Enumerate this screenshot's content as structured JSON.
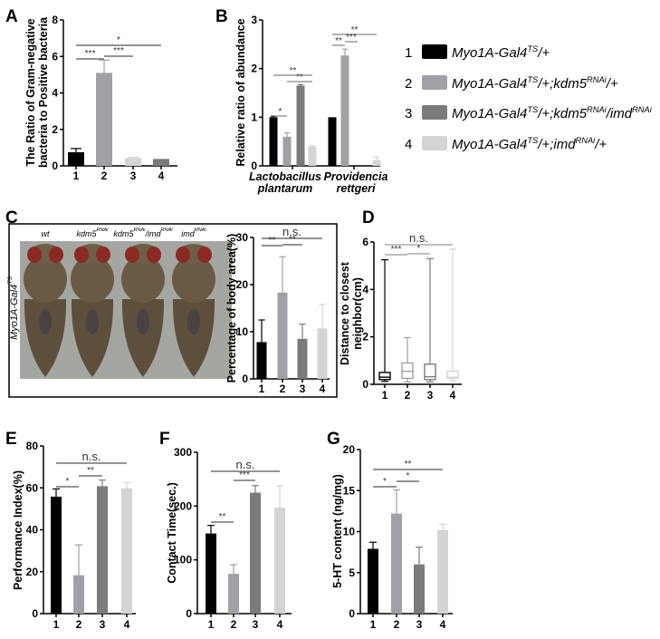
{
  "colors": {
    "g1": "#000000",
    "g2": "#a0a1a6",
    "g3": "#7b7b7d",
    "g4": "#d4d4d4"
  },
  "legend": [
    {
      "num": "1",
      "color": "#000000",
      "parts": [
        {
          "t": "Myo1A-Gal4"
        },
        {
          "sup": "TS"
        },
        {
          "t": "/+"
        }
      ]
    },
    {
      "num": "2",
      "color": "#a0a1a6",
      "parts": [
        {
          "t": "Myo1A-Gal4"
        },
        {
          "sup": "TS"
        },
        {
          "t": "/+;kdm5"
        },
        {
          "sup": "RNAi"
        },
        {
          "t": "/+"
        }
      ]
    },
    {
      "num": "3",
      "color": "#7b7b7d",
      "parts": [
        {
          "t": "Myo1A-Gal4"
        },
        {
          "sup": "TS"
        },
        {
          "t": "/+;kdm5"
        },
        {
          "sup": "RNAi"
        },
        {
          "t": "/imd"
        },
        {
          "sup": "RNAi"
        }
      ]
    },
    {
      "num": "4",
      "color": "#d4d4d4",
      "parts": [
        {
          "t": "Myo1A-Gal4"
        },
        {
          "sup": "TS"
        },
        {
          "t": "/+;imd"
        },
        {
          "sup": "RNAi"
        },
        {
          "t": "/+"
        }
      ]
    }
  ],
  "photo": {
    "side_label": {
      "t": "Myo1A-Gal4",
      "sup": "TS"
    },
    "genotypes": [
      [
        {
          "t": "wt"
        }
      ],
      [
        {
          "t": "kdm5"
        },
        {
          "sup": "RNAi"
        }
      ],
      [
        {
          "t": "kdm5"
        },
        {
          "sup": "RNAi"
        },
        {
          "t": "/imd"
        },
        {
          "sup": "RNAi"
        }
      ],
      [
        {
          "t": "imd"
        },
        {
          "sup": "RNAi"
        }
      ]
    ]
  },
  "chart_data": [
    {
      "panel": "A",
      "type": "bar",
      "ylabel": [
        "The Ratio of Gram-negative",
        "bacteria to Positive bacteria"
      ],
      "categories": [
        "1",
        "2",
        "3",
        "4"
      ],
      "values": [
        0.75,
        5.1,
        0.42,
        0.38
      ],
      "errors": [
        0.2,
        0.7,
        0.05,
        0
      ],
      "colors": [
        "#000000",
        "#a0a1a6",
        "#d4d4d4",
        "#7b7b7d"
      ],
      "ylim": [
        0,
        8
      ],
      "yticks": [
        "0",
        "2",
        "4",
        "6",
        "8"
      ],
      "significance": [
        {
          "from": 1,
          "to": 4,
          "label": "*"
        },
        {
          "from": 1,
          "to": 2,
          "label": "***"
        },
        {
          "from": 2,
          "to": 3,
          "label": "***"
        }
      ]
    },
    {
      "panel": "B",
      "type": "grouped-bar",
      "ylabel": [
        "Relative ratio of abundance"
      ],
      "categories": [
        [
          "Lactobacillus",
          "plantarum"
        ],
        [
          "Providencia",
          "rettgeri"
        ]
      ],
      "series": [
        {
          "name": "1",
          "values": [
            1.0,
            1.0
          ],
          "errors": [
            0.02,
            0
          ]
        },
        {
          "name": "2",
          "values": [
            0.6,
            2.27
          ],
          "errors": [
            0.08,
            0.13
          ]
        },
        {
          "name": "3",
          "values": [
            1.65,
            0
          ],
          "errors": [
            0.02,
            0
          ]
        },
        {
          "name": "4",
          "values": [
            0.4,
            0.12
          ],
          "errors": [
            0.02,
            0.06
          ]
        }
      ],
      "colors": [
        "#000000",
        "#a0a1a6",
        "#7b7b7d",
        "#d4d4d4"
      ],
      "ylim": [
        0,
        3
      ],
      "yticks": [
        "0",
        "1",
        "2",
        "3"
      ],
      "significance": [
        {
          "group": 1,
          "from": 1,
          "to": 2,
          "label": "*"
        },
        {
          "group": 1,
          "from": 2,
          "to": 4,
          "label": "**"
        },
        {
          "group": 1,
          "from": 1,
          "to": 4,
          "label": "**"
        },
        {
          "group": 2,
          "from": 1,
          "to": 2,
          "label": "**"
        },
        {
          "group": 2,
          "from": 2,
          "to": 3,
          "label": "***"
        },
        {
          "group": 2,
          "from": 1,
          "to": 4,
          "label": "**"
        }
      ]
    },
    {
      "panel": "C",
      "type": "bar",
      "ylabel": [
        "Percentage of body area(%)"
      ],
      "categories": [
        "1",
        "2",
        "3",
        "4"
      ],
      "values": [
        7.8,
        18.3,
        8.5,
        10.7
      ],
      "errors": [
        4.7,
        7.6,
        3.1,
        5.1
      ],
      "colors": [
        "#000000",
        "#a0a1a6",
        "#7b7b7d",
        "#d4d4d4"
      ],
      "ylim": [
        0,
        30
      ],
      "yticks": [
        "0",
        "10",
        "20",
        "30"
      ],
      "significance": [
        {
          "from": 1,
          "to": 4,
          "label": "n.s."
        },
        {
          "from": 1,
          "to": 2,
          "label": "**"
        },
        {
          "from": 2,
          "to": 3,
          "label": "**"
        }
      ]
    },
    {
      "panel": "D",
      "type": "box",
      "ylabel": [
        "Distance to closest",
        "neighbor(cm)"
      ],
      "categories": [
        "1",
        "2",
        "3",
        "4"
      ],
      "boxes": [
        {
          "min": 0.12,
          "q1": 0.2,
          "median": 0.3,
          "q3": 0.5,
          "max": 5.25
        },
        {
          "min": 0.1,
          "q1": 0.25,
          "median": 0.55,
          "q3": 0.9,
          "max": 1.97
        },
        {
          "min": 0.1,
          "q1": 0.2,
          "median": 0.32,
          "q3": 0.85,
          "max": 5.3
        },
        {
          "min": 0.15,
          "q1": 0.25,
          "median": 0.3,
          "q3": 0.55,
          "max": 5.7
        }
      ],
      "colors": [
        "#000000",
        "#a0a1a6",
        "#7b7b7d",
        "#d4d4d4"
      ],
      "ylim": [
        0,
        6
      ],
      "yticks": [
        "0",
        "2",
        "4",
        "6"
      ],
      "significance": [
        {
          "from": 1,
          "to": 4,
          "label": "n.s."
        },
        {
          "from": 1,
          "to": 2,
          "label": "***"
        },
        {
          "from": 2,
          "to": 3,
          "label": "*"
        }
      ]
    },
    {
      "panel": "E",
      "type": "bar",
      "ylabel": [
        "Performance Index(%)"
      ],
      "categories": [
        "1",
        "2",
        "3",
        "4"
      ],
      "values": [
        55.8,
        18.3,
        60.8,
        59.8
      ],
      "errors": [
        3.7,
        14.5,
        2.9,
        2.7
      ],
      "colors": [
        "#000000",
        "#a0a1a6",
        "#7b7b7d",
        "#d4d4d4"
      ],
      "ylim": [
        0,
        80
      ],
      "yticks": [
        "0",
        "20",
        "40",
        "60",
        "80"
      ],
      "significance": [
        {
          "from": 1,
          "to": 4,
          "label": "n.s."
        },
        {
          "from": 1,
          "to": 2,
          "label": "*"
        },
        {
          "from": 2,
          "to": 3,
          "label": "**"
        }
      ]
    },
    {
      "panel": "F",
      "type": "bar",
      "ylabel": [
        "Contact Time(sec.)"
      ],
      "categories": [
        "1",
        "2",
        "3",
        "4"
      ],
      "values": [
        149,
        74,
        225,
        197
      ],
      "errors": [
        15,
        17,
        13,
        40
      ],
      "colors": [
        "#000000",
        "#a0a1a6",
        "#7b7b7d",
        "#d4d4d4"
      ],
      "ylim": [
        0,
        300
      ],
      "yticks": [
        "0",
        "100",
        "200",
        "300"
      ],
      "significance": [
        {
          "from": 1,
          "to": 4,
          "label": "n.s."
        },
        {
          "from": 2,
          "to": 3,
          "label": "***"
        },
        {
          "from": 1,
          "to": 2,
          "label": "**"
        }
      ]
    },
    {
      "panel": "G",
      "type": "bar",
      "ylabel": [
        "5-HT content (ng/mg)"
      ],
      "categories": [
        "1",
        "2",
        "3",
        "4"
      ],
      "values": [
        7.9,
        12.2,
        6.0,
        10.2
      ],
      "errors": [
        0.8,
        2.9,
        2.1,
        0.7
      ],
      "colors": [
        "#000000",
        "#a0a1a6",
        "#7b7b7d",
        "#d4d4d4"
      ],
      "ylim": [
        0,
        20
      ],
      "yticks": [
        "0",
        "5",
        "10",
        "15",
        "20"
      ],
      "significance": [
        {
          "from": 1,
          "to": 4,
          "label": "**"
        },
        {
          "from": 1,
          "to": 2,
          "label": "*"
        },
        {
          "from": 2,
          "to": 3,
          "label": "*"
        }
      ]
    }
  ]
}
